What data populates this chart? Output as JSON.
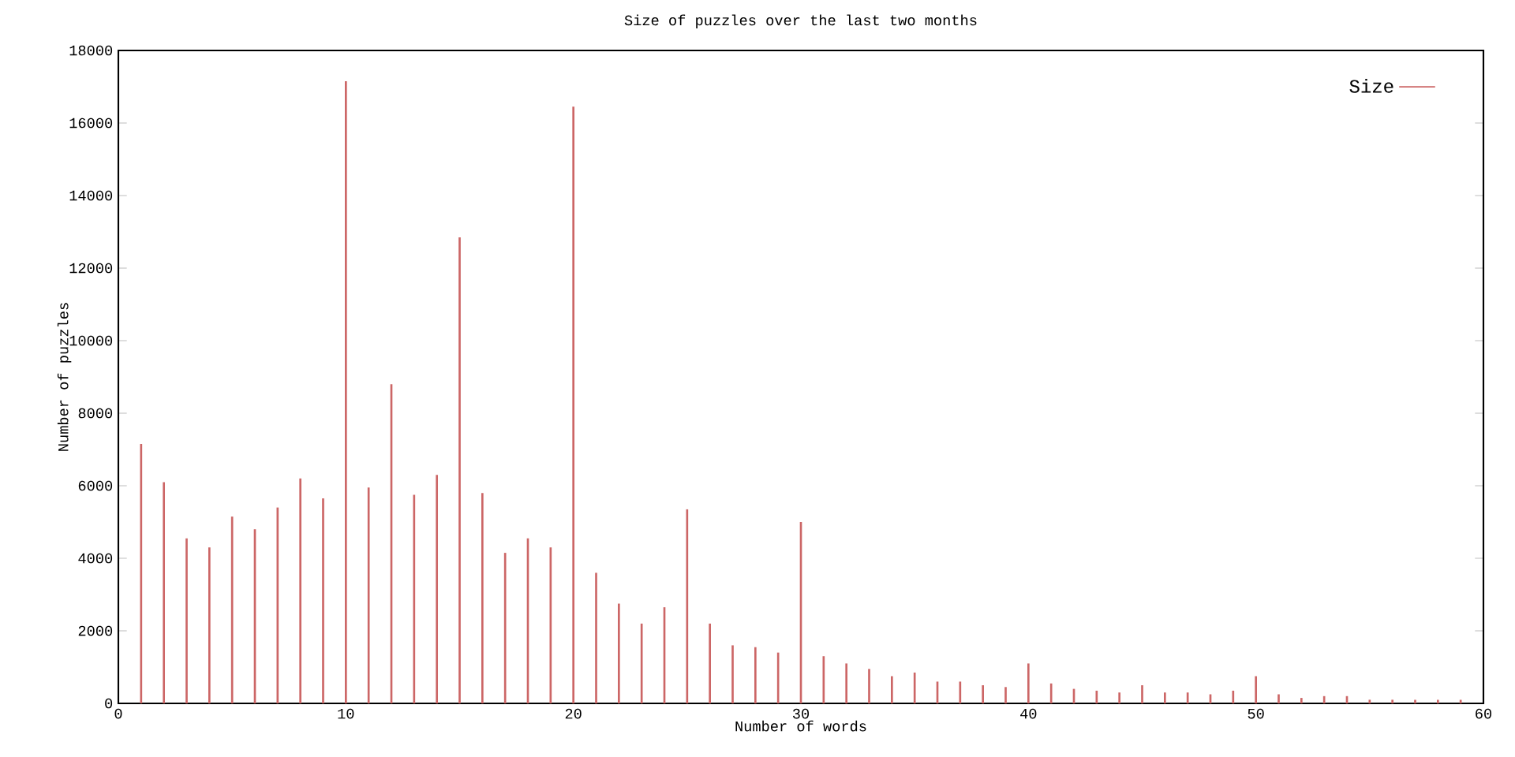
{
  "chart_data": {
    "type": "bar",
    "title": "Size of puzzles over the last two months",
    "xlabel": "Number of words",
    "ylabel": "Number of puzzles",
    "x": [
      1,
      2,
      3,
      4,
      5,
      6,
      7,
      8,
      9,
      10,
      11,
      12,
      13,
      14,
      15,
      16,
      17,
      18,
      19,
      20,
      21,
      22,
      23,
      24,
      25,
      26,
      27,
      28,
      29,
      30,
      31,
      32,
      33,
      34,
      35,
      36,
      37,
      38,
      39,
      40,
      41,
      42,
      43,
      44,
      45,
      46,
      47,
      48,
      49,
      50,
      51,
      52,
      53,
      54,
      55,
      56,
      57,
      58,
      59
    ],
    "series": [
      {
        "name": "Size",
        "color": "#cc6666",
        "values": [
          7150,
          6100,
          4550,
          4300,
          5150,
          4800,
          5400,
          6200,
          5650,
          17150,
          5950,
          8800,
          5750,
          6300,
          12850,
          5800,
          4150,
          4550,
          4300,
          16450,
          3600,
          2750,
          2200,
          2650,
          5350,
          2200,
          1600,
          1550,
          1400,
          5000,
          1300,
          1100,
          950,
          750,
          850,
          600,
          600,
          500,
          450,
          1100,
          550,
          400,
          350,
          300,
          500,
          300,
          300,
          250,
          350,
          750,
          250,
          150,
          200,
          200,
          100,
          100,
          100,
          100,
          100
        ]
      }
    ],
    "xlim": [
      0,
      60
    ],
    "xticks": [
      0,
      10,
      20,
      30,
      40,
      50,
      60
    ],
    "ylim": [
      0,
      18000
    ],
    "yticks": [
      0,
      2000,
      4000,
      6000,
      8000,
      10000,
      12000,
      14000,
      16000,
      18000
    ],
    "legend": "top right",
    "grid": false
  }
}
